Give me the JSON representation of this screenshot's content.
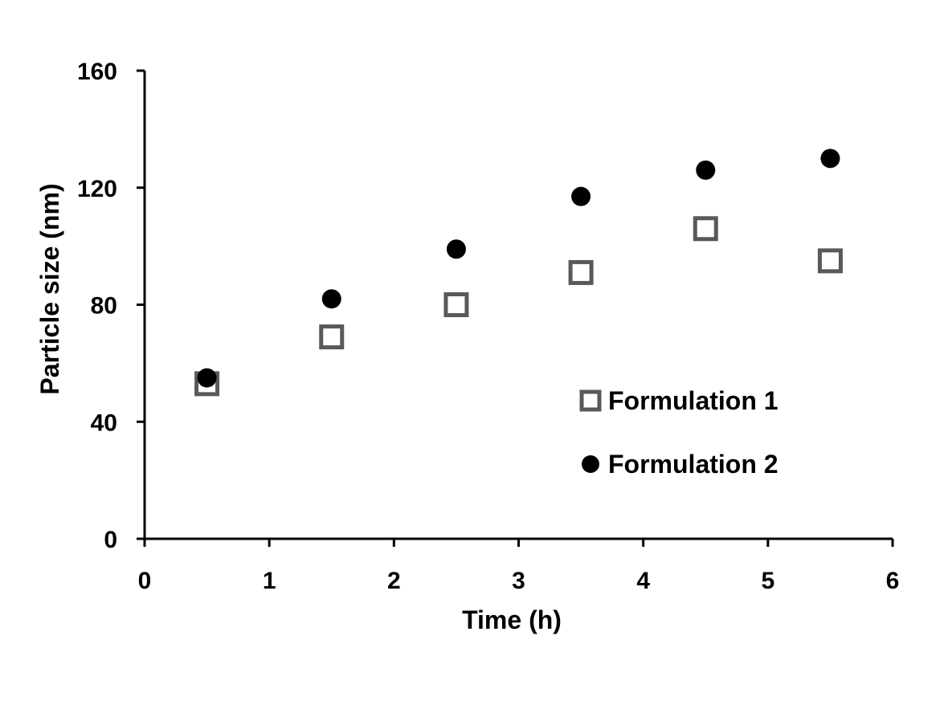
{
  "chart_data": {
    "type": "scatter",
    "title": "",
    "xlabel": "Time (h)",
    "ylabel": "Particle size (nm)",
    "xlim": [
      0,
      6
    ],
    "ylim": [
      0,
      160
    ],
    "xticks": [
      "0",
      "1",
      "2",
      "3",
      "4",
      "5",
      "6"
    ],
    "yticks": [
      "0",
      "40",
      "80",
      "120",
      "160"
    ],
    "grid": false,
    "legend_position": "lower-right",
    "series": [
      {
        "name": "Formulation 1",
        "marker": "hollow-square",
        "color": "#595959",
        "x": [
          0.5,
          1.5,
          2.5,
          3.5,
          4.5,
          5.5
        ],
        "y": [
          53,
          69,
          80,
          91,
          106,
          95
        ]
      },
      {
        "name": "Formulation 2",
        "marker": "filled-circle",
        "color": "#000000",
        "x": [
          0.5,
          1.5,
          2.5,
          3.5,
          4.5,
          5.5
        ],
        "y": [
          55,
          82,
          99,
          117,
          126,
          130
        ]
      }
    ]
  }
}
